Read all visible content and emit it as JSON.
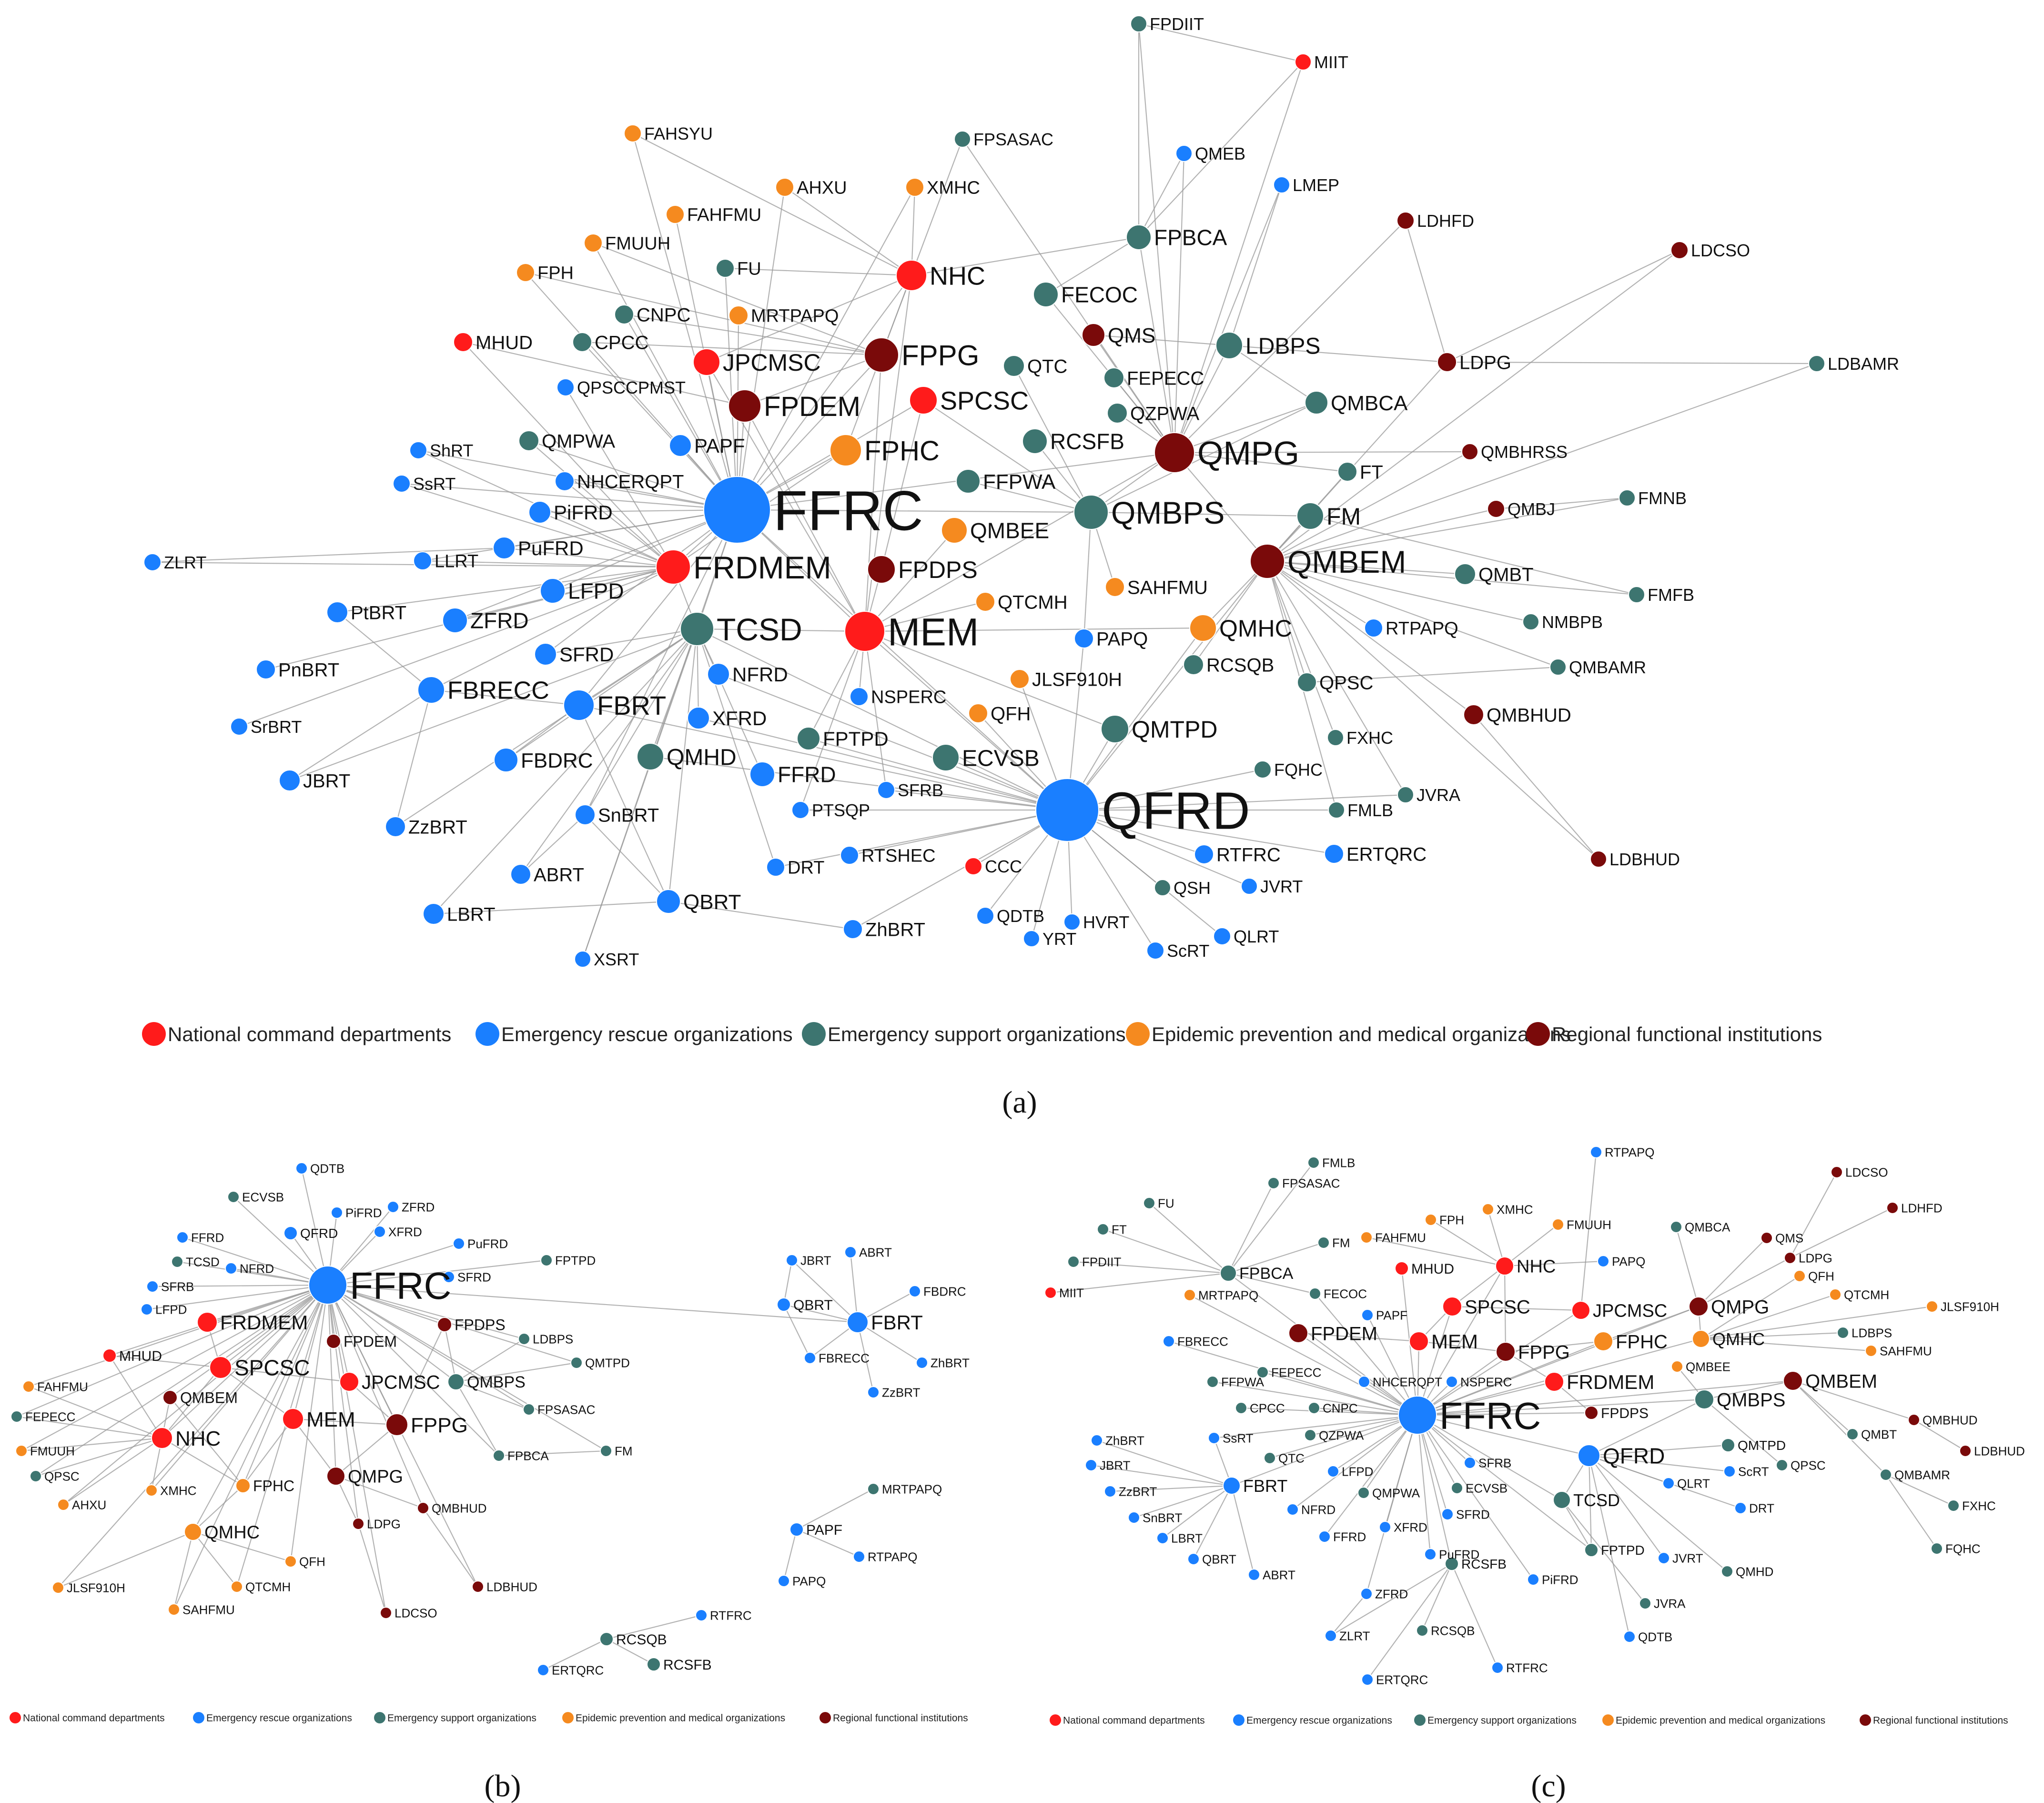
{
  "categories": [
    {
      "key": "nat",
      "label": "National command departments",
      "color": "#ff1b1b"
    },
    {
      "key": "res",
      "label": "Emergency rescue organizations",
      "color": "#1a7fff"
    },
    {
      "key": "sup",
      "label": "Emergency support organizations",
      "color": "#3d7570"
    },
    {
      "key": "med",
      "label": "Epidemic prevention and medical organizations",
      "color": "#f58a1f"
    },
    {
      "key": "reg",
      "label": "Regional functional institutions",
      "color": "#7a0a0a"
    }
  ],
  "panels": [
    {
      "id": "a",
      "label": "(a)"
    },
    {
      "id": "b",
      "label": "(b)"
    },
    {
      "id": "c",
      "label": "(c)"
    }
  ]
}
